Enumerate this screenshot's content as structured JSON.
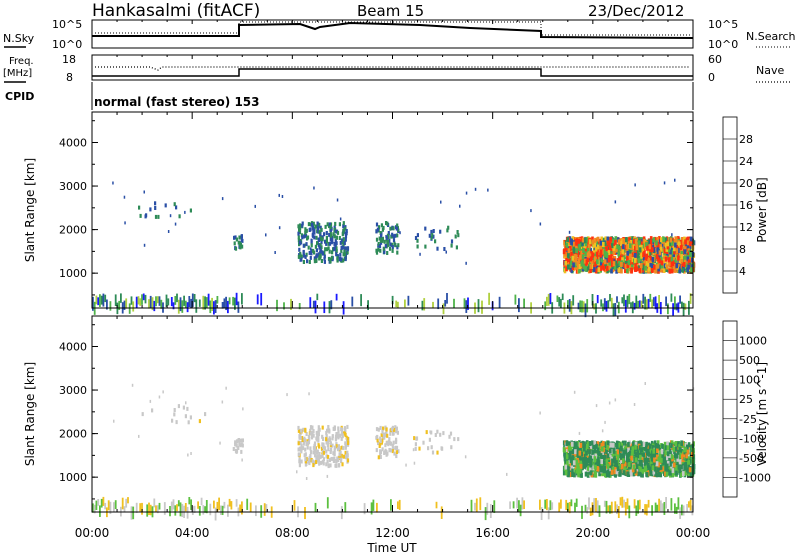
{
  "header": {
    "station": "Hankasalmi (fitACF)",
    "beam": "Beam 15",
    "date": "23/Dec/2012"
  },
  "strip_panels": {
    "nsky_label": "N.Sky",
    "nsky_ticks": [
      "10^5",
      "10^0"
    ],
    "nsearch_label": "N.Search",
    "nsearch_ticks": [
      "10^5",
      "10^0"
    ],
    "freq_label_1": "Freq.",
    "freq_label_2": "[MHz]",
    "freq_ticks": [
      "18",
      "8"
    ],
    "nave_label": "Nave",
    "nave_ticks": [
      "60",
      "0"
    ],
    "cpid_label": "CPID",
    "cpid_text": "normal (fast stereo) 153"
  },
  "chart_data": [
    {
      "type": "heatmap",
      "name": "power",
      "ylabel": "Slant Range [km]",
      "ylim": [
        200,
        4700
      ],
      "yticks": [
        "4000",
        "3000",
        "2000",
        "1000"
      ],
      "xlim": [
        "00:00",
        "24:00"
      ],
      "colorbar_label": "Power [dB]",
      "colorbar_ticks": [
        "28",
        "24",
        "20",
        "16",
        "12",
        "8",
        "4"
      ],
      "colorbar_colors": [
        "#1a1aff",
        "#2a4fa6",
        "#2e8b57",
        "#4fb24a",
        "#b0d040",
        "#f0c020",
        "#f08a20",
        "#ff3010",
        "#e00000"
      ]
    },
    {
      "type": "heatmap",
      "name": "velocity",
      "ylabel": "Slant Range [km]",
      "ylim": [
        200,
        4700
      ],
      "yticks": [
        "4000",
        "3000",
        "2000",
        "1000"
      ],
      "xlim": [
        "00:00",
        "24:00"
      ],
      "xlabel": "Time UT",
      "xticks": [
        "00:00",
        "04:00",
        "08:00",
        "12:00",
        "16:00",
        "20:00",
        "00:00"
      ],
      "colorbar_label": "Velocity [m s^-1]",
      "colorbar_ticks": [
        "1000",
        "500",
        "100",
        "25",
        "-25",
        "-100",
        "-500",
        "-1000"
      ],
      "colorbar_colors": [
        "#1a2ad0",
        "#2a4fa6",
        "#2e8b57",
        "#5cc040",
        "#c8c8c8",
        "#f0c020",
        "#f08a20",
        "#ff3010",
        "#e00000"
      ]
    }
  ]
}
